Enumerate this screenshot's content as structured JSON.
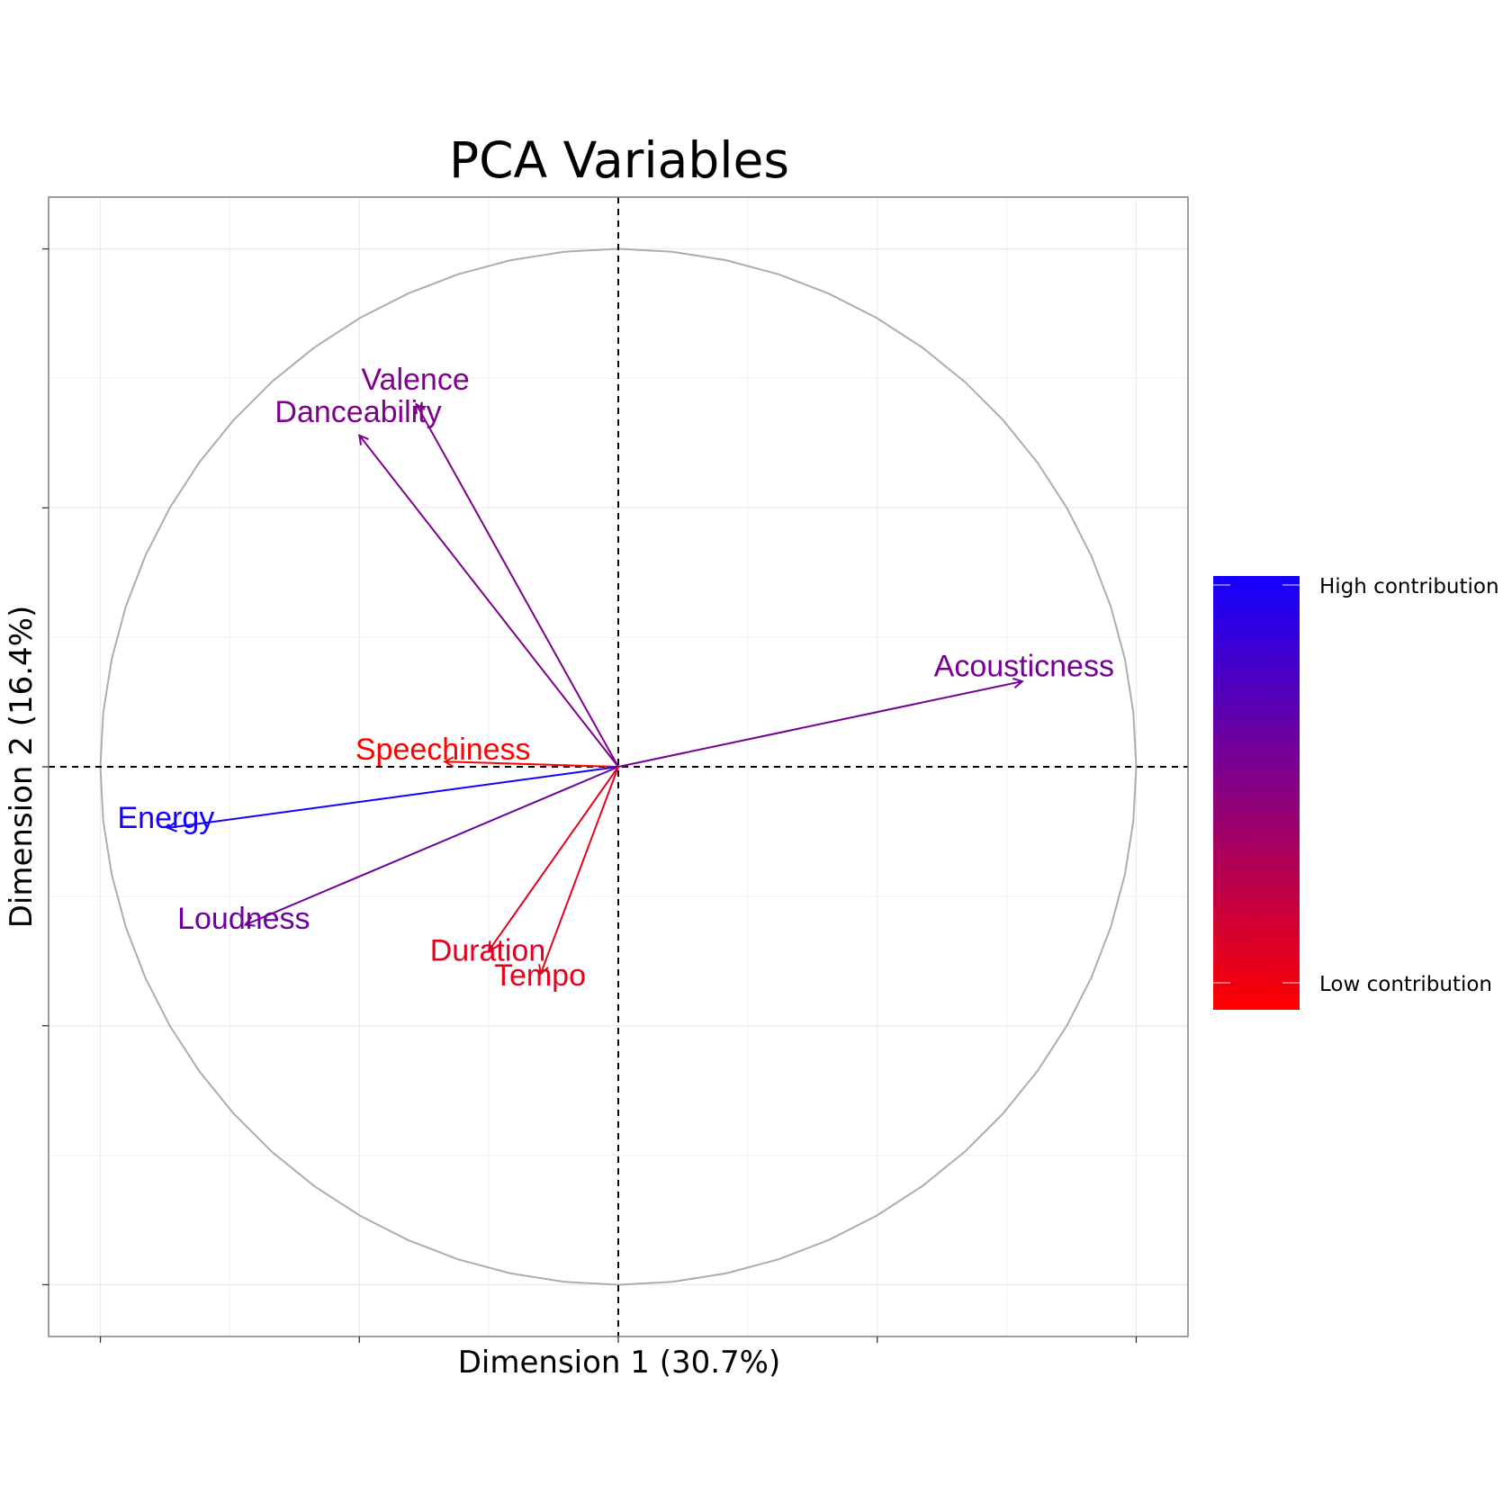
{
  "chart_data": {
    "type": "pca_variable_correlation_circle",
    "title": "PCA Variables",
    "xlabel": "Dimension 1 (30.7%)",
    "ylabel": "Dimension 2 (16.4%)",
    "xlim": [
      -1.1,
      1.1
    ],
    "ylim": [
      -1.1,
      1.1
    ],
    "grid": true,
    "circle_radius": 1,
    "variables": [
      {
        "name": "Valence",
        "x": -0.39,
        "y": 0.7,
        "contribution": 0.55
      },
      {
        "name": "Danceability",
        "x": -0.5,
        "y": 0.64,
        "contribution": 0.55
      },
      {
        "name": "Acousticness",
        "x": 0.78,
        "y": 0.165,
        "contribution": 0.58
      },
      {
        "name": "Speechiness",
        "x": -0.335,
        "y": 0.01,
        "contribution": 0.0
      },
      {
        "name": "Energy",
        "x": -0.87,
        "y": -0.118,
        "contribution": 1.0
      },
      {
        "name": "Loudness",
        "x": -0.72,
        "y": -0.305,
        "contribution": 0.62
      },
      {
        "name": "Duration",
        "x": -0.25,
        "y": -0.355,
        "contribution": 0.12
      },
      {
        "name": "Tempo",
        "x": -0.15,
        "y": -0.4,
        "contribution": 0.1
      }
    ],
    "legend": {
      "placement": "right",
      "high_label": "High contribution",
      "low_label": "Low contribution",
      "high_color": "#1400ff",
      "low_color": "#ff0000"
    }
  }
}
